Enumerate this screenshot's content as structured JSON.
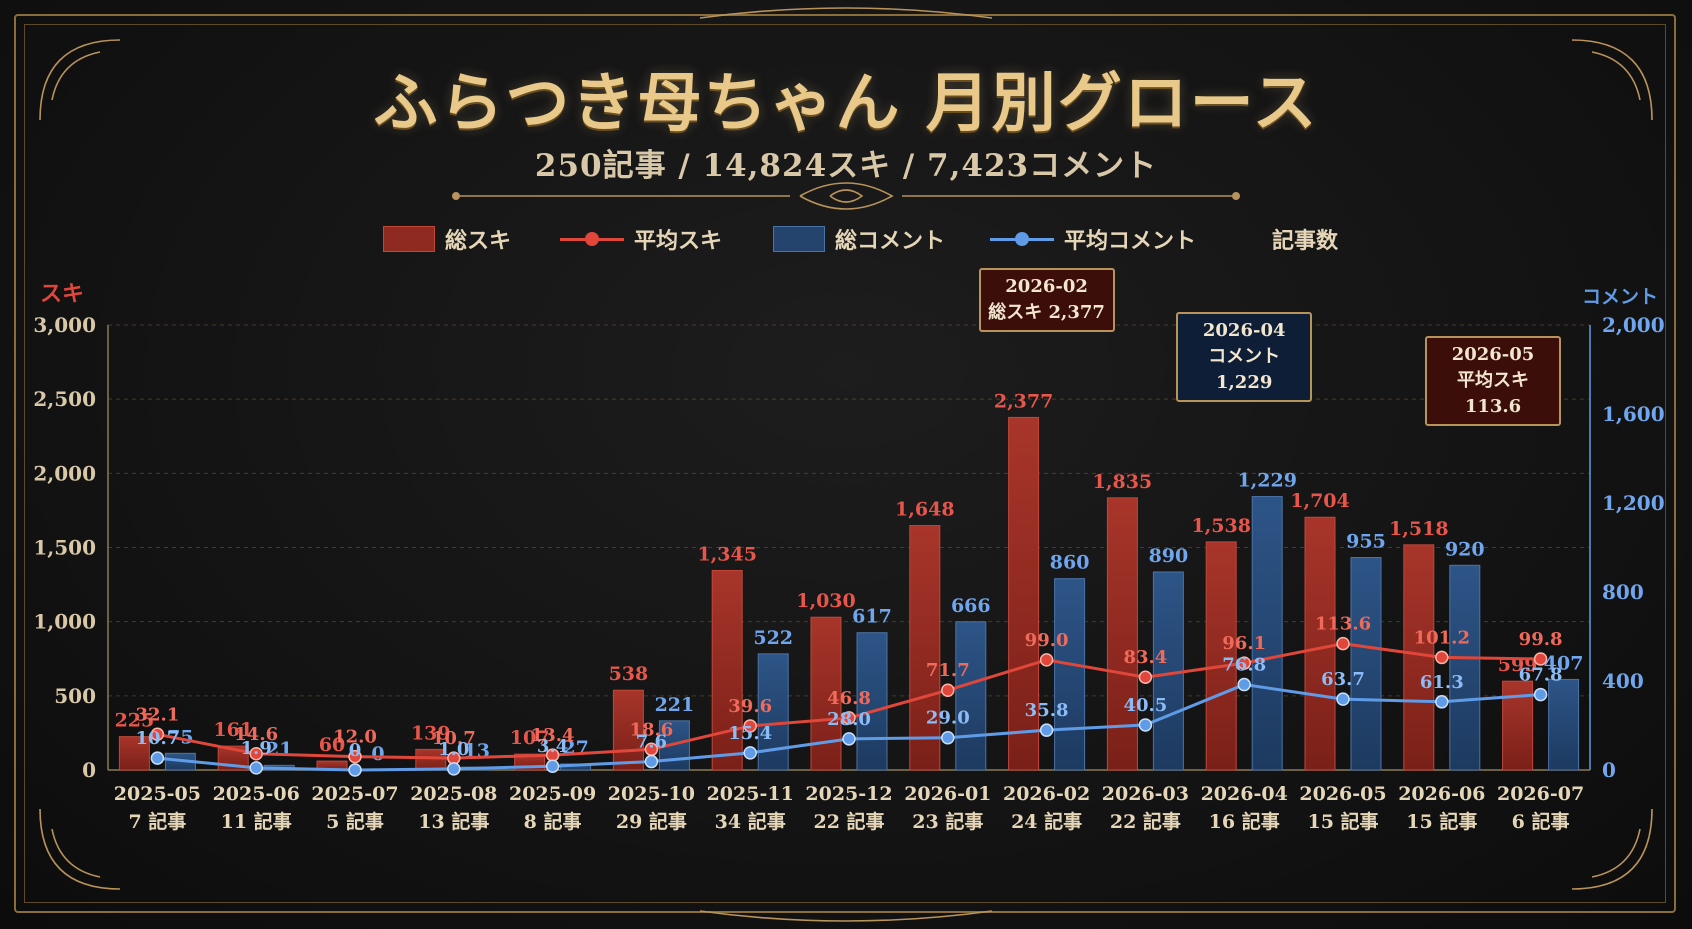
{
  "title": "ふらつき母ちゃん 月別グロース",
  "subtitle": "250記事 / 14,824スキ / 7,423コメント",
  "legend": {
    "total_likes": "総スキ",
    "avg_likes": "平均スキ",
    "total_comments": "総コメント",
    "avg_comments": "平均コメント",
    "articles": "記事数"
  },
  "axis": {
    "left_name": "スキ",
    "right_name": "コメント"
  },
  "colors": {
    "red": "#c0392b",
    "blue": "#3a6aa8",
    "red_line": "#e0473a",
    "blue_line": "#5f9be6",
    "gold": "#e8c98a"
  },
  "callouts": [
    {
      "lines": [
        "2026-02",
        "総スキ 2,377"
      ],
      "style": "red"
    },
    {
      "lines": [
        "2026-04",
        "コメント 1,229"
      ],
      "style": "blue"
    },
    {
      "lines": [
        "2026-05",
        "平均スキ 113.6"
      ],
      "style": "red"
    }
  ],
  "chart_data": {
    "type": "bar",
    "categories": [
      "2025-05",
      "2025-06",
      "2025-07",
      "2025-08",
      "2025-09",
      "2025-10",
      "2025-11",
      "2025-12",
      "2026-01",
      "2026-02",
      "2026-03",
      "2026-04",
      "2026-05",
      "2026-06",
      "2026-07"
    ],
    "article_labels": [
      "7 記事",
      "11 記事",
      "5 記事",
      "13 記事",
      "8 記事",
      "29 記事",
      "34 記事",
      "22 記事",
      "23 記事",
      "24 記事",
      "22 記事",
      "16 記事",
      "15 記事",
      "15 記事",
      "6 記事"
    ],
    "series": [
      {
        "name": "総スキ",
        "axis": "left",
        "kind": "bar",
        "values": [
          225,
          161,
          60,
          139,
          107,
          538,
          1345,
          1030,
          1648,
          2377,
          1835,
          1538,
          1704,
          1518,
          599
        ],
        "labels": [
          "225",
          "161",
          "60",
          "139",
          "107",
          "538",
          "1,345",
          "1,030",
          "1,648",
          "2,377",
          "1,835",
          "1,538",
          "1,704",
          "1,518",
          "599"
        ]
      },
      {
        "name": "総コメント",
        "axis": "right",
        "kind": "bar",
        "values": [
          75,
          21,
          0,
          13,
          27,
          221,
          522,
          617,
          666,
          860,
          890,
          1229,
          955,
          920,
          407
        ],
        "labels": [
          "75",
          "21",
          "0",
          "13",
          "27",
          "221",
          "522",
          "617",
          "666",
          "860",
          "890",
          "1,229",
          "955",
          "920",
          "407"
        ]
      },
      {
        "name": "平均スキ",
        "axis": "right",
        "kind": "line",
        "values": [
          32.1,
          14.6,
          12.0,
          10.7,
          13.4,
          18.6,
          39.6,
          46.8,
          71.7,
          99.0,
          83.4,
          96.1,
          113.6,
          101.2,
          99.8
        ],
        "labels": [
          "32.1",
          "14.6",
          "12.0",
          "10.7",
          "13.4",
          "18.6",
          "39.6",
          "46.8",
          "71.7",
          "99.0",
          "83.4",
          "96.1",
          "113.6",
          "101.2",
          "99.8"
        ]
      },
      {
        "name": "平均コメント",
        "axis": "right",
        "kind": "line",
        "values": [
          10.7,
          1.9,
          0,
          1.0,
          3.4,
          7.6,
          15.4,
          28.0,
          29.0,
          35.8,
          40.5,
          76.8,
          63.7,
          61.3,
          67.8
        ],
        "labels": [
          "10.7",
          "1.9",
          "0",
          "1.0",
          "3.4",
          "7.6",
          "15.4",
          "28.0",
          "29.0",
          "35.8",
          "40.5",
          "76.8",
          "63.7",
          "61.3",
          "67.8"
        ]
      }
    ],
    "left_axis": {
      "ticks": [
        "0",
        "500",
        "1,000",
        "1,500",
        "2,000",
        "2,500",
        "3,000"
      ],
      "range": [
        0,
        3000
      ]
    },
    "right_axis": {
      "ticks": [
        "0",
        "400",
        "800",
        "1,200",
        "1,600",
        "2,000"
      ],
      "range": [
        0,
        2000
      ]
    },
    "grid": true,
    "legend_position": "top"
  }
}
